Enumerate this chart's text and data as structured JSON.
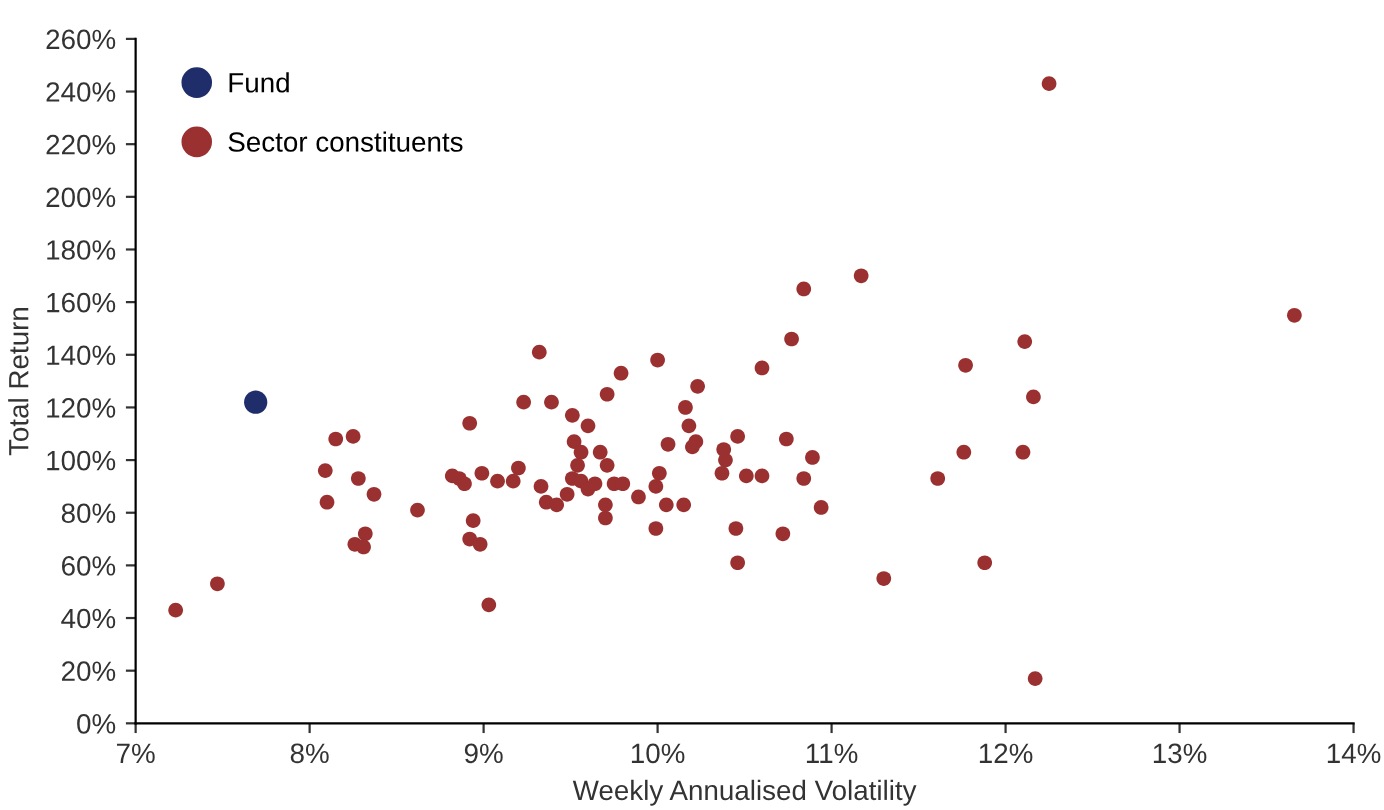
{
  "chart_data": {
    "type": "scatter",
    "xlabel": "Weekly Annualised Volatility",
    "ylabel": "Total Return",
    "xlim": [
      7,
      14
    ],
    "ylim": [
      0,
      260
    ],
    "xticks": [
      {
        "value": 7,
        "label": "7%"
      },
      {
        "value": 8,
        "label": "8%"
      },
      {
        "value": 9,
        "label": "9%"
      },
      {
        "value": 10,
        "label": "10%"
      },
      {
        "value": 11,
        "label": "11%"
      },
      {
        "value": 12,
        "label": "12%"
      },
      {
        "value": 13,
        "label": "13%"
      },
      {
        "value": 14,
        "label": "14%"
      }
    ],
    "yticks": [
      {
        "value": 0,
        "label": "0%"
      },
      {
        "value": 20,
        "label": "20%"
      },
      {
        "value": 40,
        "label": "40%"
      },
      {
        "value": 60,
        "label": "60%"
      },
      {
        "value": 80,
        "label": "80%"
      },
      {
        "value": 100,
        "label": "100%"
      },
      {
        "value": 120,
        "label": "120%"
      },
      {
        "value": 140,
        "label": "140%"
      },
      {
        "value": 160,
        "label": "160%"
      },
      {
        "value": 180,
        "label": "180%"
      },
      {
        "value": 200,
        "label": "200%"
      },
      {
        "value": 220,
        "label": "220%"
      },
      {
        "value": 240,
        "label": "240%"
      },
      {
        "value": 260,
        "label": "260%"
      }
    ],
    "grid": false,
    "legend": "top left",
    "marker": "circle",
    "series": [
      {
        "name": "Fund",
        "color": "#1f2d6b",
        "x": [
          7.69
        ],
        "values": [
          122
        ]
      },
      {
        "name": "Sector constituents",
        "color": "#9b3030",
        "x": [
          7.23,
          7.47,
          8.09,
          8.1,
          8.15,
          8.28,
          8.25,
          8.37,
          8.32,
          8.26,
          8.31,
          8.62,
          8.92,
          8.82,
          8.86,
          8.89,
          8.99,
          9.08,
          9.17,
          9.2,
          9.32,
          9.23,
          9.39,
          9.33,
          9.36,
          9.42,
          9.48,
          8.94,
          8.92,
          8.98,
          9.03,
          9.51,
          9.6,
          9.52,
          9.56,
          9.67,
          9.71,
          9.54,
          9.51,
          9.56,
          9.6,
          9.64,
          9.7,
          9.7,
          9.75,
          9.8,
          9.71,
          9.79,
          10.0,
          9.89,
          9.99,
          9.99,
          10.01,
          10.05,
          10.15,
          10.06,
          10.16,
          10.18,
          10.23,
          10.22,
          10.2,
          10.38,
          10.39,
          10.37,
          10.46,
          10.51,
          10.45,
          10.46,
          10.6,
          10.6,
          10.72,
          10.74,
          10.77,
          10.84,
          10.84,
          10.89,
          10.94,
          11.17,
          11.3,
          11.61,
          12.25,
          13.66,
          12.11,
          11.77,
          12.16,
          11.76,
          12.1,
          11.88,
          12.17
        ],
        "values": [
          43,
          53,
          96,
          84,
          108,
          93,
          109,
          87,
          72,
          68,
          67,
          81,
          114,
          94,
          93,
          91,
          95,
          92,
          92,
          97,
          141,
          122,
          122,
          90,
          84,
          83,
          87,
          77,
          70,
          68,
          45,
          117,
          113,
          107,
          103,
          103,
          98,
          98,
          93,
          92,
          89,
          91,
          83,
          78,
          91,
          91,
          125,
          133,
          138,
          86,
          74,
          90,
          95,
          83,
          83,
          106,
          120,
          113,
          128,
          107,
          105,
          104,
          100,
          95,
          109,
          94,
          74,
          61,
          135,
          94,
          72,
          108,
          146,
          165,
          93,
          101,
          82,
          170,
          55,
          93,
          243,
          155,
          145,
          136,
          124,
          103,
          103,
          61,
          17
        ]
      }
    ]
  }
}
